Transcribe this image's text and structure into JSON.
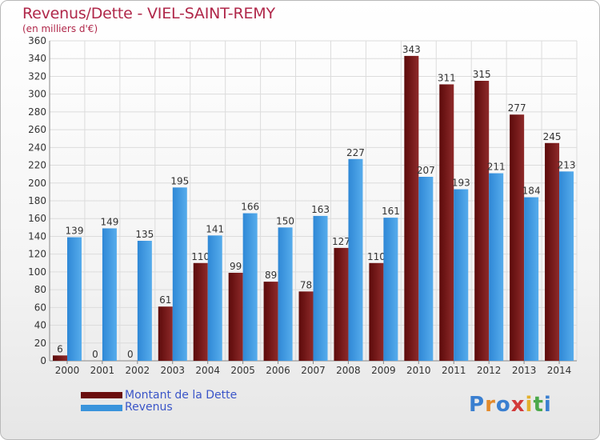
{
  "chart_data": {
    "type": "bar",
    "title": "Revenus/Dette - VIEL-SAINT-REMY",
    "subtitle": "(en milliers d'€)",
    "categories": [
      "2000",
      "2001",
      "2002",
      "2003",
      "2004",
      "2005",
      "2006",
      "2007",
      "2008",
      "2009",
      "2010",
      "2011",
      "2012",
      "2013",
      "2014"
    ],
    "series": [
      {
        "name": "Montant de la Dette",
        "color": "#7a1010",
        "values": [
          6,
          0,
          0,
          61,
          110,
          99,
          89,
          78,
          127,
          110,
          343,
          311,
          315,
          277,
          245
        ]
      },
      {
        "name": "Revenus",
        "color": "#3a94dc",
        "values": [
          139,
          149,
          135,
          195,
          141,
          166,
          150,
          163,
          227,
          161,
          207,
          193,
          211,
          184,
          213
        ]
      }
    ],
    "ylim": [
      0,
      360
    ],
    "ytick_step": 20,
    "grid": true,
    "legend_position": "bottom-left"
  },
  "logo": {
    "text": "Proxiti"
  }
}
